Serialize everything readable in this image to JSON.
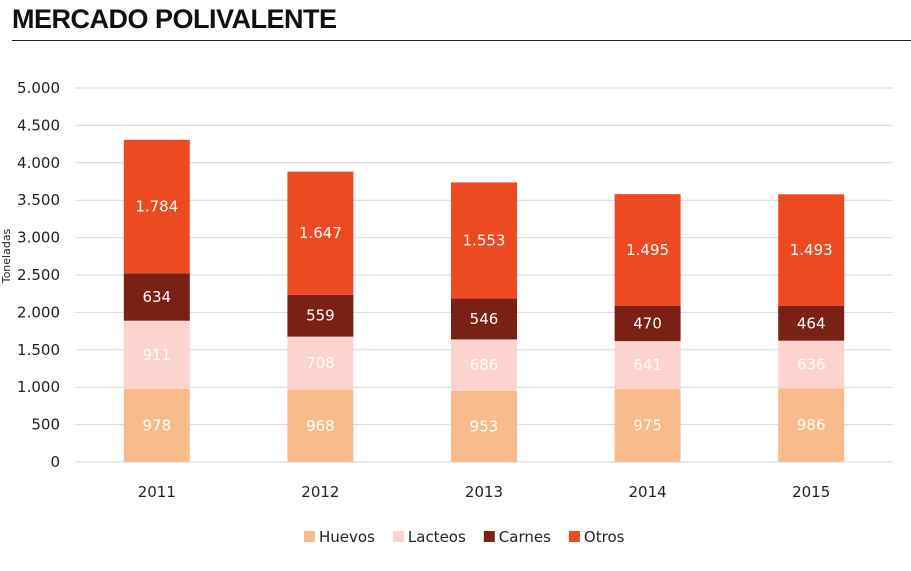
{
  "title": "MERCADO POLIVALENTE",
  "chart_data": {
    "type": "bar",
    "stacked": true,
    "categories": [
      "2011",
      "2012",
      "2013",
      "2014",
      "2015"
    ],
    "series": [
      {
        "name": "Huevos",
        "color": "#F9BB8B",
        "label_color": "#ffffff",
        "values": [
          978,
          968,
          953,
          975,
          986
        ]
      },
      {
        "name": "Lacteos",
        "color": "#FCD3CE",
        "label_color": "#ffffff",
        "values": [
          911,
          708,
          686,
          641,
          636
        ]
      },
      {
        "name": "Carnes",
        "color": "#7A2116",
        "label_color": "#ffffff",
        "values": [
          634,
          559,
          546,
          470,
          464
        ]
      },
      {
        "name": "Otros",
        "color": "#EE4A22",
        "label_color": "#ffffff",
        "values": [
          1784,
          1647,
          1553,
          1495,
          1493
        ]
      }
    ],
    "data_labels": [
      [
        "978",
        "968",
        "953",
        "975",
        "986"
      ],
      [
        "911",
        "708",
        "686",
        "641",
        "636"
      ],
      [
        "634",
        "559",
        "546",
        "470",
        "464"
      ],
      [
        "1.784",
        "1.647",
        "1.553",
        "1.495",
        "1.493"
      ]
    ],
    "ylabel": "Toneladas",
    "ylim": [
      0,
      5000
    ],
    "yticks": [
      0,
      500,
      1000,
      1500,
      2000,
      2500,
      3000,
      3500,
      4000,
      4500,
      5000
    ],
    "ytick_labels": [
      "0",
      "500",
      "1.000",
      "1.500",
      "2.000",
      "2.500",
      "3.000",
      "3.500",
      "4.000",
      "4.500",
      "5.000"
    ],
    "grid": true,
    "legend_position": "bottom"
  }
}
